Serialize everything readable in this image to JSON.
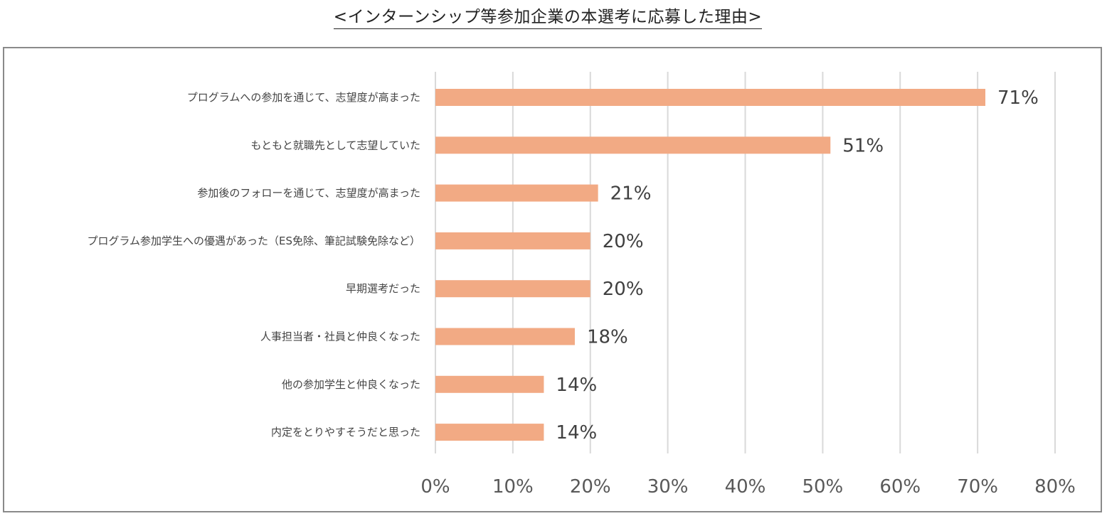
{
  "title": "<インターンシップ等参加企業の本選考に応募した理由>",
  "chart_data": {
    "type": "bar",
    "orientation": "horizontal",
    "title": "<インターンシップ等参加企業の本選考に応募した理由>",
    "categories": [
      "プログラムへの参加を通じて、志望度が高まった",
      "もともと就職先として志望していた",
      "参加後のフォローを通じて、志望度が高まった",
      "プログラム参加学生への優遇があった（ES免除、筆記試験免除など）",
      "早期選考だった",
      "人事担当者・社員と仲良くなった",
      "他の参加学生と仲良くなった",
      "内定をとりやすそうだと思った"
    ],
    "values": [
      71,
      51,
      21,
      20,
      20,
      18,
      14,
      14
    ],
    "value_labels": [
      "71%",
      "51%",
      "21%",
      "20%",
      "20%",
      "18%",
      "14%",
      "14%"
    ],
    "xlim": [
      0,
      80
    ],
    "xticks": [
      "0%",
      "10%",
      "20%",
      "30%",
      "40%",
      "50%",
      "60%",
      "70%",
      "80%"
    ],
    "grid": "vertical",
    "bar_color": "#F2AA84",
    "grid_color": "#D9D9D9"
  }
}
